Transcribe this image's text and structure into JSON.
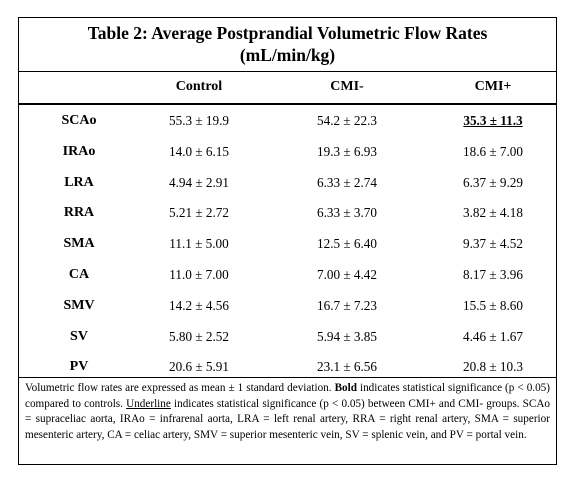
{
  "table": {
    "title_line1": "Table 2:  Average Postprandial Volumetric Flow Rates",
    "title_line2": "(mL/min/kg)",
    "headers": [
      "Control",
      "CMI-",
      "CMI+"
    ],
    "rows": [
      {
        "label": "SCAo",
        "control": "55.3 ± 19.9",
        "cmi_minus": "54.2 ± 22.3",
        "cmi_plus": "35.3 ± 11.3",
        "cmi_plus_bold_underline": true
      },
      {
        "label": "IRAo",
        "control": "14.0 ± 6.15",
        "cmi_minus": "19.3 ± 6.93",
        "cmi_plus": "18.6 ± 7.00"
      },
      {
        "label": "LRA",
        "control": "4.94 ± 2.91",
        "cmi_minus": "6.33 ± 2.74",
        "cmi_plus": "6.37 ± 9.29"
      },
      {
        "label": "RRA",
        "control": "5.21 ± 2.72",
        "cmi_minus": "6.33 ± 3.70",
        "cmi_plus": "3.82 ± 4.18"
      },
      {
        "label": "SMA",
        "control": "11.1 ± 5.00",
        "cmi_minus": "12.5 ± 6.40",
        "cmi_plus": "9.37 ± 4.52"
      },
      {
        "label": "CA",
        "control": "11.0 ± 7.00",
        "cmi_minus": "7.00 ± 4.42",
        "cmi_plus": "8.17 ± 3.96"
      },
      {
        "label": "SMV",
        "control": "14.2 ± 4.56",
        "cmi_minus": "16.7 ± 7.23",
        "cmi_plus": "15.5 ± 8.60"
      },
      {
        "label": "SV",
        "control": "5.80 ± 2.52",
        "cmi_minus": "5.94 ± 3.85",
        "cmi_plus": "4.46 ± 1.67"
      },
      {
        "label": "PV",
        "control": "20.6 ± 5.91",
        "cmi_minus": "23.1 ± 6.56",
        "cmi_plus": "20.8 ± 10.3"
      }
    ],
    "footnote": {
      "part1": "Volumetric flow rates are expressed as mean ± 1 standard deviation. ",
      "bold_word": "Bold",
      "part2": " indicates statistical significance (p < 0.05) compared to controls. ",
      "underline_word": "Underline",
      "part3": " indicates statistical significance (p < 0.05) between CMI+ and CMI- groups. SCAo = supraceliac aorta, IRAo = infrarenal aorta, LRA = left renal artery, RRA = right renal artery, SMA = superior mesenteric artery, CA = celiac artery, SMV = superior mesenteric vein, SV = splenic vein, and PV = portal vein."
    }
  }
}
